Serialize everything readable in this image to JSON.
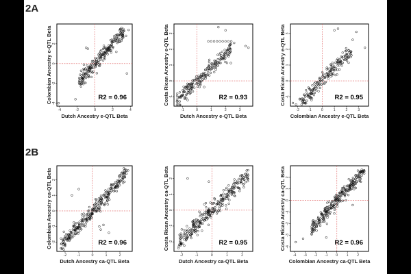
{
  "sections": [
    {
      "label": "2A"
    },
    {
      "label": "2B"
    }
  ],
  "chart_data": [
    {
      "type": "scatter",
      "section": "2A",
      "xlabel": "Dutch Ancestry e-QTL Beta",
      "ylabel": "Colombian Ancestry e-QTL Beta",
      "annotation": "R2 = 0.96",
      "xlim": [
        -4.3,
        4.2
      ],
      "ylim": [
        -4.3,
        4.0
      ],
      "xticks": [
        "-4",
        "-2",
        "0",
        "2",
        "4"
      ],
      "xtick_values": [
        -4,
        -2,
        0,
        2,
        4
      ],
      "yticks": [
        "-4",
        "-2",
        "0",
        "2"
      ],
      "ytick_values": [
        -4,
        -2,
        0,
        2
      ],
      "ref_lines": {
        "x": 0,
        "y": 0
      },
      "trend": {
        "slope": 1.0,
        "intercept": 0.0,
        "x_range": [
          -1.8,
          3.2
        ],
        "spread": 0.35,
        "n": 230
      },
      "extra_points": [
        [
          -4.1,
          -4.0
        ],
        [
          -2.2,
          -3.6
        ],
        [
          -0.8,
          1.5
        ],
        [
          -1.0,
          1.6
        ],
        [
          3.3,
          3.3
        ],
        [
          3.5,
          2.8
        ],
        [
          3.8,
          3.4
        ],
        [
          3.6,
          -1.0
        ],
        [
          2.9,
          3.5
        ],
        [
          3.0,
          3.6
        ],
        [
          1.0,
          1.8
        ]
      ]
    },
    {
      "type": "scatter",
      "section": "2A",
      "xlabel": "Dutch Ancestry e-QTL Beta",
      "ylabel": "Costa Rican Ancestry e-QTL Beta",
      "annotation": "R2 = 0.93",
      "xlim": [
        -1.6,
        3.9
      ],
      "ylim": [
        -1.6,
        3.6
      ],
      "xticks": [
        "-1",
        "0",
        "1",
        "2",
        "3"
      ],
      "xtick_values": [
        -1,
        0,
        1,
        2,
        3
      ],
      "yticks": [
        "-1",
        "0",
        "1",
        "2",
        "3"
      ],
      "ytick_values": [
        -1,
        0,
        1,
        2,
        3
      ],
      "ref_lines": {
        "x": 0,
        "y": 0
      },
      "trend": {
        "slope": 0.85,
        "intercept": 0.0,
        "x_range": [
          -1.4,
          2.4
        ],
        "spread": 0.25,
        "n": 220
      },
      "extra_points": [
        [
          0.8,
          2.5
        ],
        [
          1.0,
          2.5
        ],
        [
          1.2,
          2.5
        ],
        [
          1.4,
          2.5
        ],
        [
          1.6,
          2.5
        ],
        [
          1.8,
          2.5
        ],
        [
          2.0,
          2.5
        ],
        [
          2.2,
          2.5
        ],
        [
          2.4,
          2.5
        ],
        [
          1.5,
          3.4
        ],
        [
          2.0,
          3.2
        ],
        [
          2.6,
          2.4
        ],
        [
          3.4,
          2.2
        ],
        [
          3.6,
          2.1
        ],
        [
          -1.2,
          -1.3
        ]
      ]
    },
    {
      "type": "scatter",
      "section": "2A",
      "xlabel": "Colombian Ancestry e-QTL Beta",
      "ylabel": "Costa Rican Ancestry e-QTL Beta",
      "annotation": "R2 = 0.95",
      "xlim": [
        -2.6,
        3.8
      ],
      "ylim": [
        -1.6,
        3.6
      ],
      "xticks": [
        "-2",
        "-1",
        "0",
        "1",
        "2",
        "3"
      ],
      "xtick_values": [
        -2,
        -1,
        0,
        1,
        2,
        3
      ],
      "yticks": [
        "-1",
        "0",
        "1",
        "2",
        "3"
      ],
      "ytick_values": [
        -1,
        0,
        1,
        2,
        3
      ],
      "ref_lines": {
        "x": 0,
        "y": 0
      },
      "trend": {
        "slope": 0.8,
        "intercept": 0.0,
        "x_range": [
          -2.3,
          2.4
        ],
        "spread": 0.25,
        "n": 210
      },
      "extra_points": [
        [
          1.0,
          3.2
        ],
        [
          1.3,
          3.3
        ],
        [
          2.8,
          3.1
        ],
        [
          3.5,
          2.1
        ],
        [
          2.5,
          2.6
        ],
        [
          -2.4,
          -1.4
        ]
      ]
    },
    {
      "type": "scatter",
      "section": "2B",
      "xlabel": "Dutch Ancestry ca-QTL Beta",
      "ylabel": "Colombian Ancestry ca-QTL Beta",
      "annotation": "R2 = 0.96",
      "xlim": [
        -2.6,
        2.9
      ],
      "ylim": [
        -2.6,
        2.9
      ],
      "xticks": [
        "-2",
        "-1",
        "0",
        "1",
        "2"
      ],
      "xtick_values": [
        -2,
        -1,
        0,
        1,
        2
      ],
      "yticks": [
        "-2",
        "-1",
        "0",
        "1",
        "2"
      ],
      "ytick_values": [
        -2,
        -1,
        0,
        1,
        2
      ],
      "ref_lines": {
        "x": 0,
        "y": 0
      },
      "trend": {
        "slope": 0.95,
        "intercept": 0.0,
        "x_range": [
          -2.3,
          2.5
        ],
        "spread": 0.25,
        "n": 300
      },
      "extra_points": [
        [
          -1.5,
          1.0
        ],
        [
          -1.0,
          1.4
        ],
        [
          0.5,
          -1.0
        ],
        [
          0.6,
          -1.2
        ],
        [
          0.8,
          -0.9
        ],
        [
          1.2,
          -1.4
        ],
        [
          -2.3,
          -2.4
        ],
        [
          2.6,
          2.6
        ]
      ]
    },
    {
      "type": "scatter",
      "section": "2B",
      "xlabel": "Dutch Ancestry ca-QTL Beta",
      "ylabel": "Costa Rican Ancestry ca-QTL Beta",
      "annotation": "R2 = 0.95",
      "xlim": [
        -2.5,
        2.7
      ],
      "ylim": [
        -2.6,
        2.8
      ],
      "xticks": [
        "-2",
        "-1",
        "0",
        "1",
        "2"
      ],
      "xtick_values": [
        -2,
        -1,
        0,
        1,
        2
      ],
      "yticks": [
        "-2",
        "-1",
        "0",
        "1",
        "2"
      ],
      "ytick_values": [
        -2,
        -1,
        0,
        1,
        2
      ],
      "ref_lines": {
        "x": 0,
        "y": 0
      },
      "trend": {
        "slope": 0.95,
        "intercept": 0.0,
        "x_range": [
          -2.2,
          2.4
        ],
        "spread": 0.25,
        "n": 300
      },
      "extra_points": [
        [
          -1.6,
          2.0
        ],
        [
          -0.2,
          1.8
        ],
        [
          2.4,
          2.2
        ],
        [
          2.3,
          2.5
        ],
        [
          -2.2,
          -2.4
        ]
      ]
    },
    {
      "type": "scatter",
      "section": "2B",
      "xlabel": "Colombian Ancestry ca-QTL Beta",
      "ylabel": "Costa Rican Ancestry ca-QTL Beta",
      "annotation": "R2 = 0.96",
      "xlim": [
        -4.4,
        3.0
      ],
      "ylim": [
        -4.4,
        3.0
      ],
      "xticks": [
        "-4",
        "-3",
        "-2",
        "-1",
        "0",
        "1",
        "2"
      ],
      "xtick_values": [
        -4,
        -3,
        -2,
        -1,
        0,
        1,
        2
      ],
      "yticks": [
        "-4",
        "-3",
        "-2",
        "-1",
        "0",
        "1",
        "2"
      ],
      "ytick_values": [
        -4,
        -3,
        -2,
        -1,
        0,
        1,
        2
      ],
      "ref_lines": {
        "x": 0,
        "y": 0
      },
      "trend": {
        "slope": 1.0,
        "intercept": 0.0,
        "x_range": [
          -2.4,
          2.6
        ],
        "spread": 0.3,
        "n": 280
      },
      "extra_points": [
        [
          -3.9,
          -3.6
        ],
        [
          -3.2,
          -3.3
        ],
        [
          -1.0,
          -3.2
        ],
        [
          1.5,
          -0.4
        ]
      ]
    }
  ]
}
